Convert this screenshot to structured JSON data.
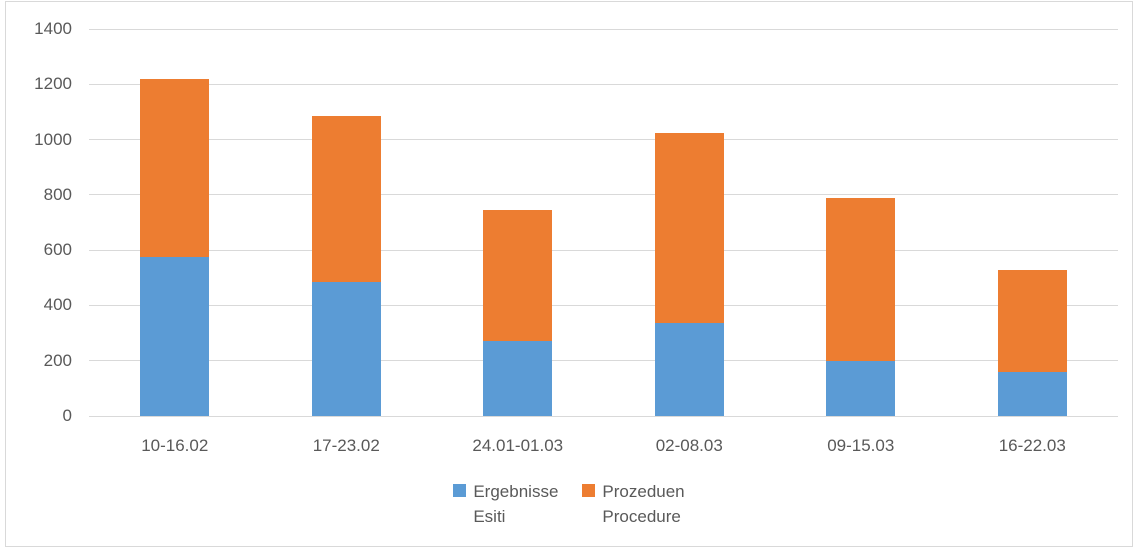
{
  "chart_data": {
    "type": "bar",
    "stacked": true,
    "title": "",
    "categories": [
      "10-16.02",
      "17-23.02",
      "24.01-01.03",
      "02-08.03",
      "09-15.03",
      "16-22.03"
    ],
    "series": [
      {
        "name": "Ergebnisse Esiti",
        "legend_lines": [
          "Ergebnisse",
          "Esiti"
        ],
        "color": "#5B9BD5",
        "values": [
          575,
          485,
          270,
          335,
          200,
          160
        ]
      },
      {
        "name": "Prozeduen Procedure",
        "legend_lines": [
          "Prozeduen",
          "Procedure"
        ],
        "color": "#ED7D31",
        "values": [
          645,
          600,
          475,
          690,
          590,
          370
        ]
      }
    ],
    "stacked_totals": [
      1220,
      1085,
      745,
      1025,
      790,
      530
    ],
    "ylim": [
      0,
      1400
    ],
    "yticks": [
      0,
      200,
      400,
      600,
      800,
      1000,
      1200,
      1400
    ],
    "xlabel": "",
    "ylabel": "",
    "grid": true,
    "legend_position": "bottom",
    "colors": {
      "gridline": "#D9D9D9",
      "text": "#595959",
      "background": "#FFFFFF",
      "border": "#D9D9D9"
    }
  }
}
